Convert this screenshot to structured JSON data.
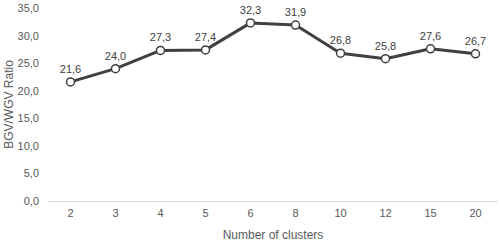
{
  "chart_data": {
    "type": "line",
    "x_label": "Number of clusters",
    "y_label": "BGV/WGV Ratio",
    "categories": [
      "2",
      "3",
      "4",
      "5",
      "6",
      "8",
      "10",
      "12",
      "15",
      "20"
    ],
    "values": [
      21.6,
      24.0,
      27.3,
      27.4,
      32.3,
      31.9,
      26.8,
      25.8,
      27.6,
      26.7
    ],
    "value_labels": [
      "21,6",
      "24,0",
      "27,3",
      "27,4",
      "32,3",
      "31,9",
      "26,8",
      "25,8",
      "27,6",
      "26,7"
    ],
    "color": "#404040",
    "marker": "circle",
    "line_style": "solid",
    "data_labels": true,
    "grid": false,
    "ylim": [
      0,
      35
    ],
    "yticks": [
      {
        "value": 0,
        "label": "0,0"
      },
      {
        "value": 5,
        "label": "5,0"
      },
      {
        "value": 10,
        "label": "10,0"
      },
      {
        "value": 15,
        "label": "15,0"
      },
      {
        "value": 20,
        "label": "20,0"
      },
      {
        "value": 25,
        "label": "25,0"
      },
      {
        "value": 30,
        "label": "30,0"
      },
      {
        "value": 35,
        "label": "35,0"
      }
    ]
  }
}
